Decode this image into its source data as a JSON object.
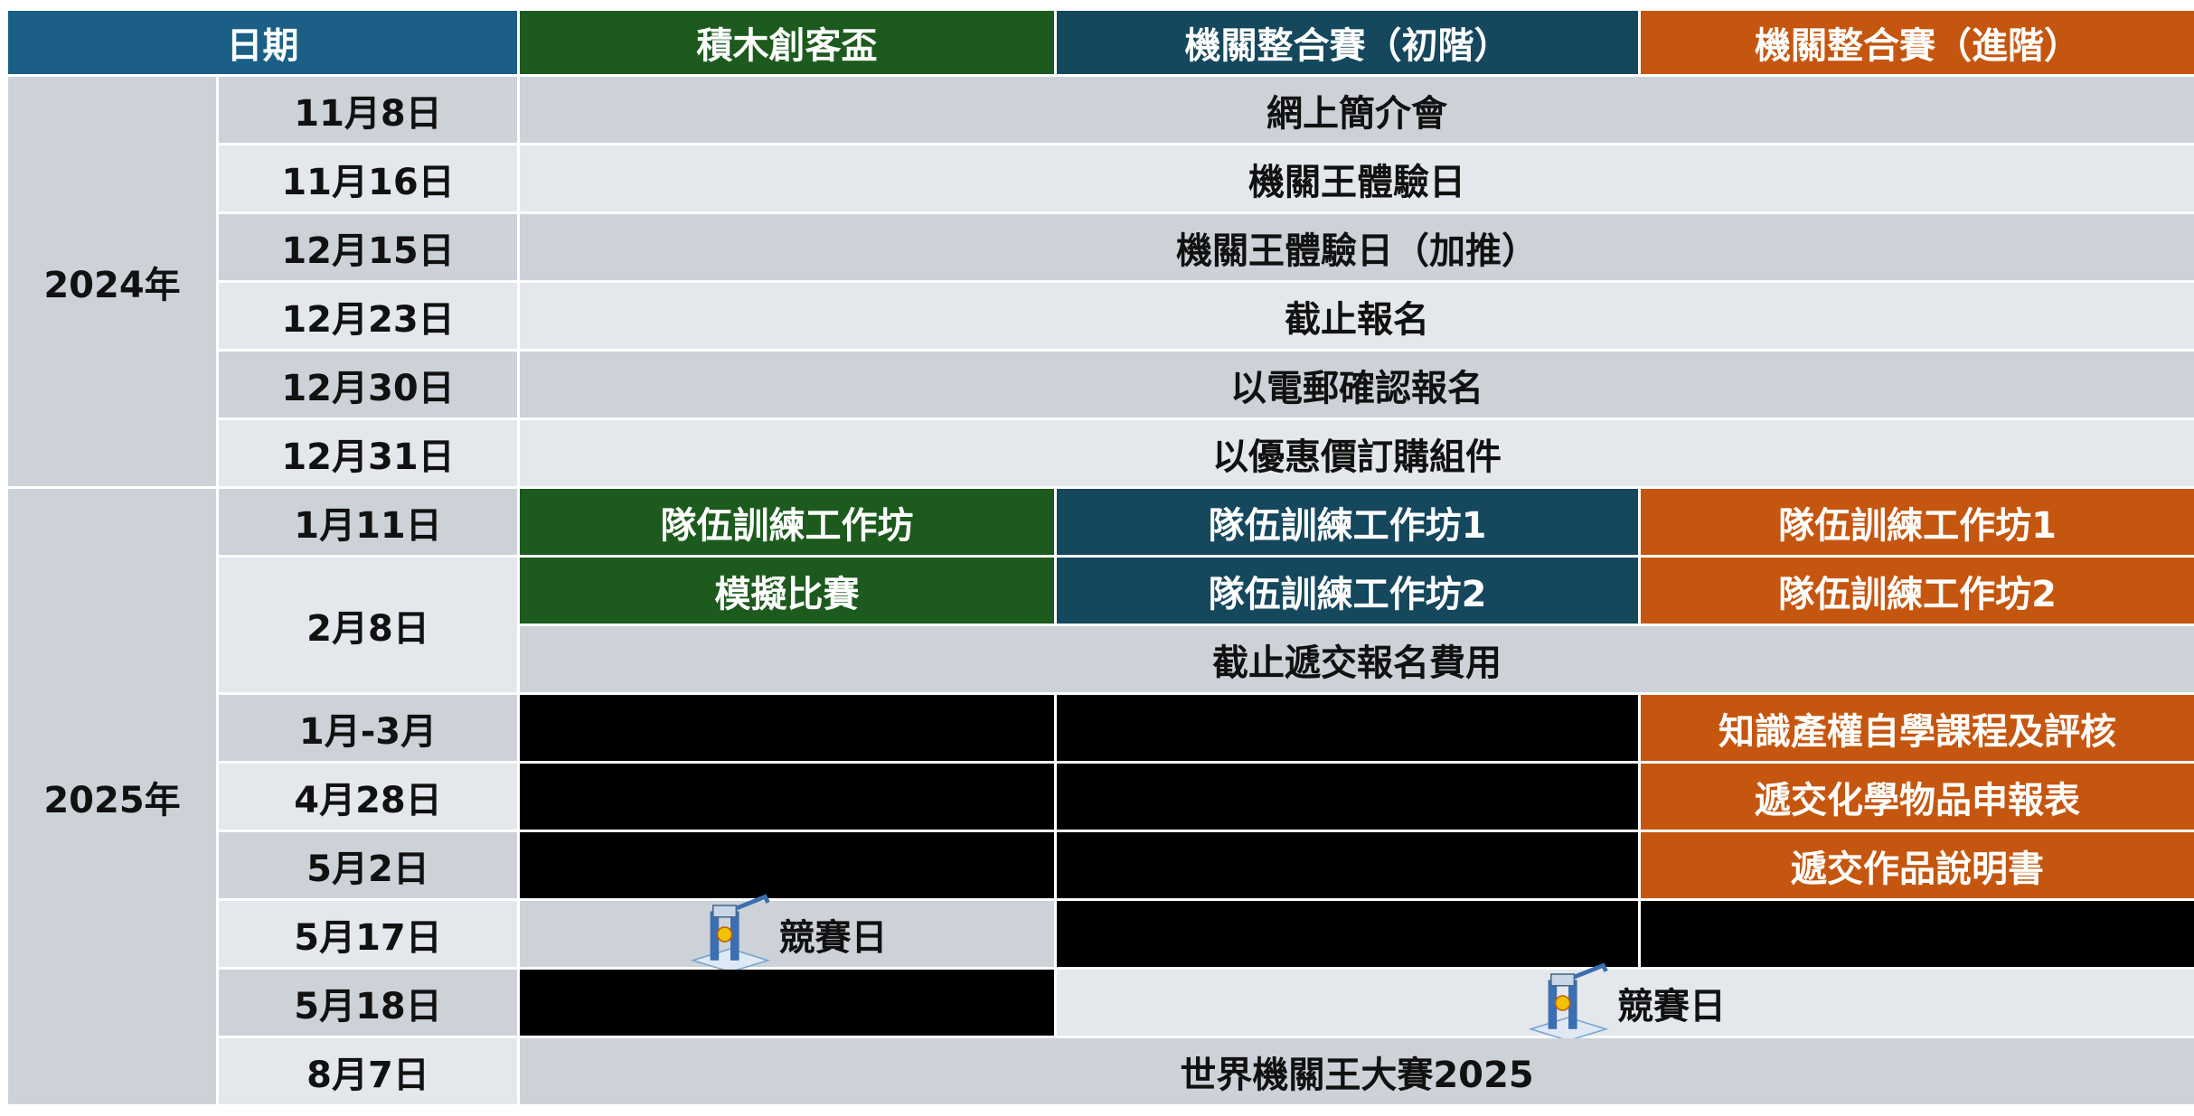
{
  "header": [
    "日期",
    "積木創客盃",
    "機關整合賽（初階）",
    "機關整合賽（進階）"
  ],
  "years": [
    "2024年",
    "2025年"
  ],
  "dates": [
    "11月8日",
    "11月16日",
    "12月15日",
    "12月23日",
    "12月30日",
    "12月31日",
    "1月11日",
    "2月8日",
    "1月-3月",
    "4月28日",
    "5月2日",
    "5月17日",
    "5月18日",
    "8月7日"
  ],
  "cells": [
    "網上簡介會",
    "機關王體驗日",
    "機關王體驗日（加推）",
    "截止報名",
    "以電郵確認報名",
    "以優惠價訂購組件",
    "隊伍訓練工作坊",
    "隊伍訓練工作坊1",
    "隊伍訓練工作坊1",
    "模擬比賽",
    "隊伍訓練工作坊2",
    "隊伍訓練工作坊2",
    "截止遞交報名費用",
    "知識產權自學課程及評核",
    "遞交化學物品申報表",
    "遞交作品說明書",
    "競賽日",
    "競賽日",
    "世界機關王大賽2025"
  ]
}
